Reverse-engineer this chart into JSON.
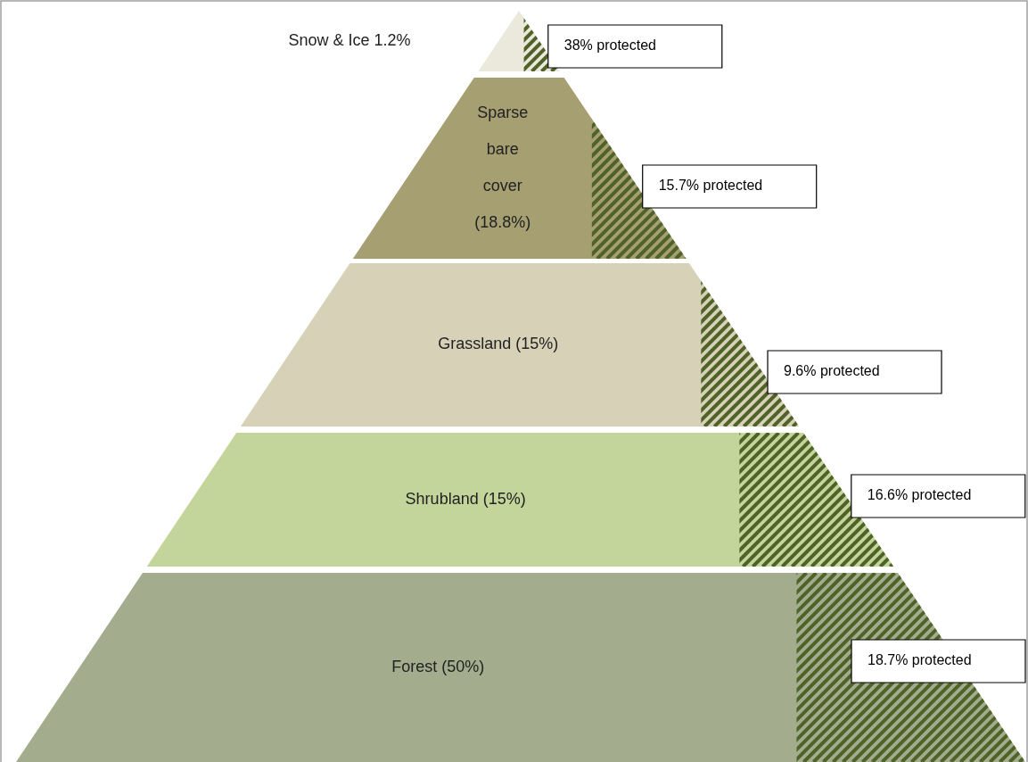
{
  "chart_data": {
    "type": "other",
    "categories": [
      "Snow & Ice 1.2%",
      "Sparse bare cover (18.8%)",
      "Grassland (15%)",
      "Shrubland (15%)",
      "Forest (50%)"
    ],
    "colors": [
      "#ebe8dc",
      "#a69f72",
      "#d7d1b7",
      "#c3d59b",
      "#a3ad8e"
    ],
    "series": [
      {
        "values": [
          38,
          15.7,
          9.6,
          16.6,
          18.7
        ],
        "value_labels": [
          "38% protected",
          "15.7% protected",
          "9.6% protected",
          "16.6% protected",
          "18.7% protected"
        ]
      }
    ]
  }
}
